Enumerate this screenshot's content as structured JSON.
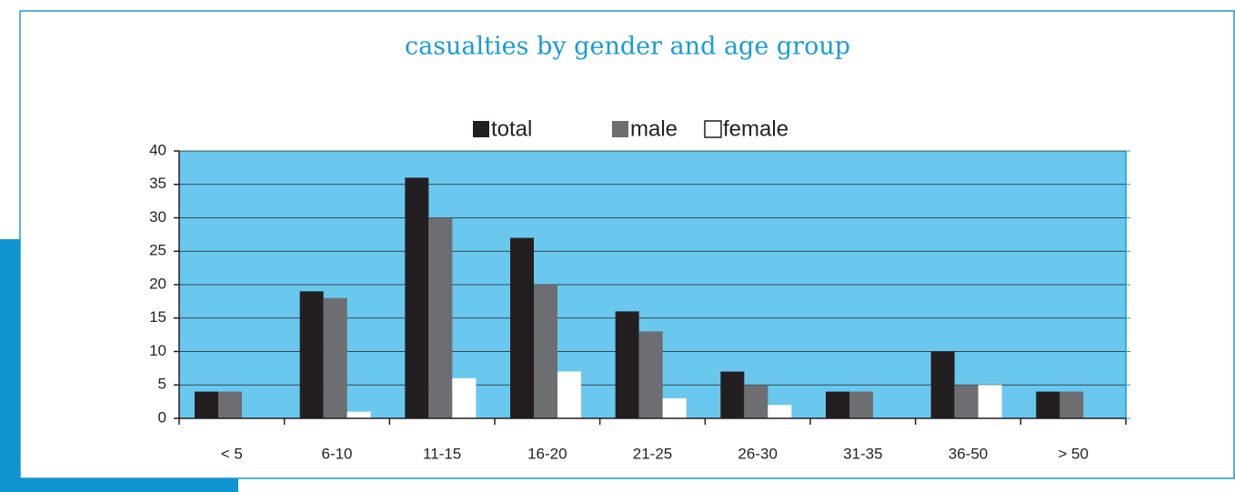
{
  "chart_data": {
    "type": "bar",
    "title": "casualties by gender and age group",
    "categories": [
      "< 5",
      "6-10",
      "11-15",
      "16-20",
      "21-25",
      "26-30",
      "31-35",
      "36-50",
      "> 50"
    ],
    "series": [
      {
        "name": "total",
        "color": "#231f20",
        "values": [
          4,
          19,
          36,
          27,
          16,
          7,
          4,
          10,
          4
        ]
      },
      {
        "name": "male",
        "color": "#6d6e71",
        "values": [
          4,
          18,
          30,
          20,
          13,
          5,
          4,
          5,
          4
        ]
      },
      {
        "name": "female",
        "color": "#ffffff",
        "values": [
          0,
          1,
          6,
          7,
          3,
          2,
          0,
          5,
          0
        ]
      }
    ],
    "ylim": [
      0,
      40
    ],
    "yticks": [
      0,
      5,
      10,
      15,
      20,
      25,
      30,
      35,
      40
    ],
    "grid": true,
    "legend": "top",
    "plot_background": "#6ac8ee"
  }
}
